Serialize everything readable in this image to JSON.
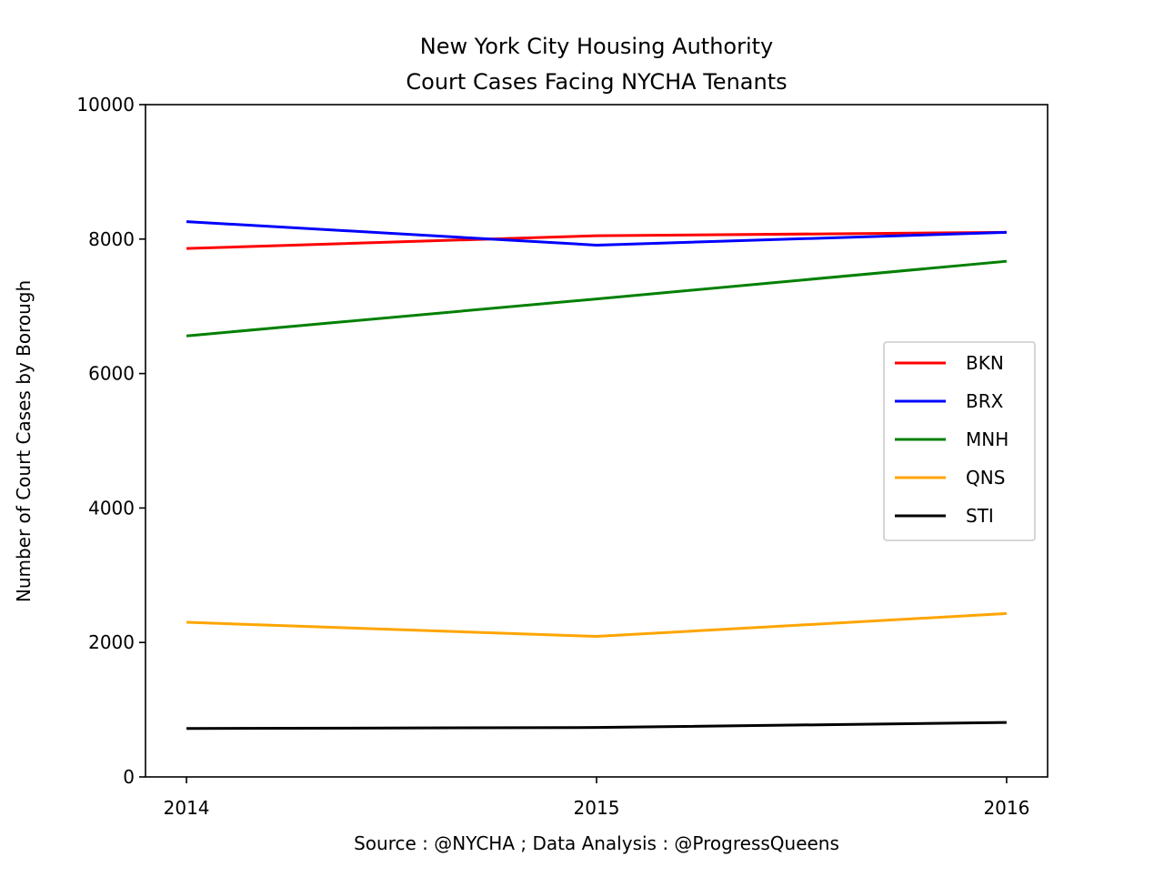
{
  "chart_data": {
    "type": "line",
    "title_line1": "New York City Housing Authority",
    "title_line2": "Court Cases Facing NYCHA Tenants",
    "xlabel": "Source : @NYCHA ; Data Analysis : @ProgressQueens",
    "ylabel": "Number of Court Cases by Borough",
    "x": [
      "2014",
      "2015",
      "2016"
    ],
    "xlim": [
      2013.9,
      2016.1
    ],
    "ylim": [
      0,
      10000
    ],
    "yticks": [
      "0",
      "2000",
      "4000",
      "6000",
      "8000",
      "10000"
    ],
    "grid": false,
    "legend_position": "center-right",
    "series": [
      {
        "name": "BKN",
        "color": "#ff0000",
        "values": [
          7860,
          8050,
          8100
        ]
      },
      {
        "name": "BRX",
        "color": "#0000ff",
        "values": [
          8260,
          7910,
          8100
        ]
      },
      {
        "name": "MNH",
        "color": "#008000",
        "values": [
          6560,
          7110,
          7670
        ]
      },
      {
        "name": "QNS",
        "color": "#ffa500",
        "values": [
          2300,
          2090,
          2430
        ]
      },
      {
        "name": "STI",
        "color": "#000000",
        "values": [
          720,
          735,
          810
        ]
      }
    ]
  }
}
